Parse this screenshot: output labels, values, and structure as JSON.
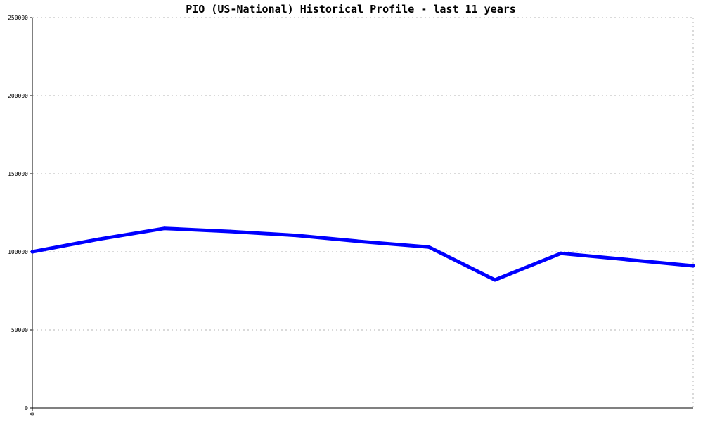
{
  "chart_data": {
    "type": "line",
    "title": "PIO (US-National) Historical Profile - last 11 years",
    "xlabel": "",
    "ylabel": "",
    "ylim": [
      0,
      250000
    ],
    "yticks": [
      0,
      50000,
      100000,
      150000,
      200000,
      250000
    ],
    "xticks": [
      0
    ],
    "xlim": [
      0,
      10
    ],
    "grid": true,
    "line_color": "#0000ff",
    "series": [
      {
        "name": "",
        "x": [
          0,
          1,
          2,
          3,
          4,
          5,
          6,
          7,
          8,
          9,
          10
        ],
        "values": [
          100000,
          108000,
          115000,
          113000,
          110500,
          106500,
          103000,
          82000,
          99000,
          95000,
          91000
        ]
      }
    ]
  }
}
